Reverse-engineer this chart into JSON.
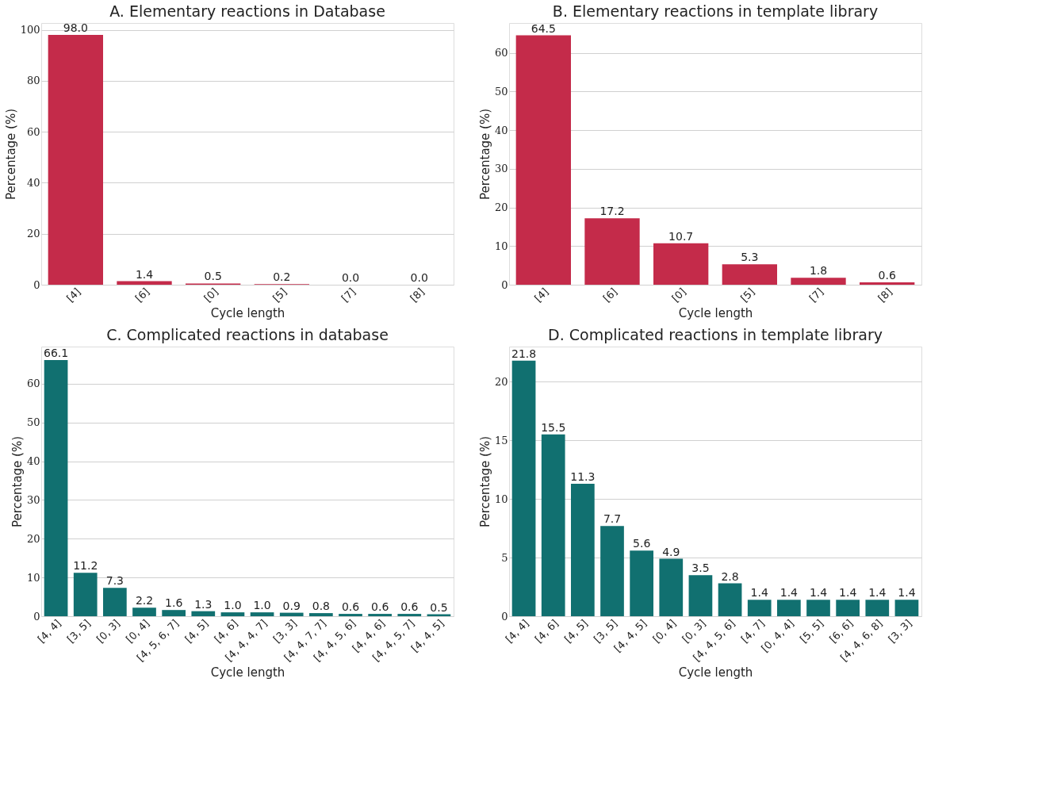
{
  "chart_data": [
    {
      "type": "bar",
      "title": "A. Elementary reactions in Database",
      "xlabel": "Cycle length",
      "ylabel": "Percentage (%)",
      "categories": [
        "[4]",
        "[6]",
        "[0]",
        "[5]",
        "[7]",
        "[8]"
      ],
      "values": [
        98.0,
        1.4,
        0.5,
        0.2,
        0.0,
        0.0
      ],
      "value_labels": [
        "98.0",
        "1.4",
        "0.5",
        "0.2",
        "0.0",
        "0.0"
      ],
      "color": "#c42b4a",
      "ylim": [
        0,
        102.7
      ],
      "yticks": [
        0,
        20,
        40,
        60,
        80,
        100
      ],
      "grid": "y"
    },
    {
      "type": "bar",
      "title": "B. Elementary reactions in template library",
      "xlabel": "Cycle length",
      "ylabel": "Percentage (%)",
      "categories": [
        "[4]",
        "[6]",
        "[0]",
        "[5]",
        "[7]",
        "[8]"
      ],
      "values": [
        64.5,
        17.2,
        10.7,
        5.3,
        1.8,
        0.6
      ],
      "value_labels": [
        "64.5",
        "17.2",
        "10.7",
        "5.3",
        "1.8",
        "0.6"
      ],
      "color": "#c42b4a",
      "ylim": [
        0,
        67.7
      ],
      "yticks": [
        0,
        10,
        20,
        30,
        40,
        50,
        60
      ],
      "grid": "y"
    },
    {
      "type": "bar",
      "title": "C. Complicated reactions in database",
      "xlabel": "Cycle length",
      "ylabel": "Percentage (%)",
      "categories": [
        "[4, 4]",
        "[3, 5]",
        "[0, 3]",
        "[0, 4]",
        "[4, 5, 6, 7]",
        "[4, 5]",
        "[4, 6]",
        "[4, 4, 4, 7]",
        "[3, 3]",
        "[4, 4, 7, 7]",
        "[4, 4, 5, 6]",
        "[4, 4, 6]",
        "[4, 4, 5, 7]",
        "[4, 4, 5]"
      ],
      "values": [
        66.1,
        11.2,
        7.3,
        2.2,
        1.6,
        1.3,
        1.0,
        1.0,
        0.9,
        0.8,
        0.6,
        0.6,
        0.6,
        0.5
      ],
      "value_labels": [
        "66.1",
        "11.2",
        "7.3",
        "2.2",
        "1.6",
        "1.3",
        "1.0",
        "1.0",
        "0.9",
        "0.8",
        "0.6",
        "0.6",
        "0.6",
        "0.5"
      ],
      "color": "#117070",
      "ylim": [
        0,
        69.6
      ],
      "yticks": [
        0,
        10,
        20,
        30,
        40,
        50,
        60
      ],
      "grid": "y"
    },
    {
      "type": "bar",
      "title": "D. Complicated reactions in template library",
      "xlabel": "Cycle length",
      "ylabel": "Percentage (%)",
      "categories": [
        "[4, 4]",
        "[4, 6]",
        "[4, 5]",
        "[3, 5]",
        "[4, 4, 5]",
        "[0, 4]",
        "[0, 3]",
        "[4, 4, 5, 6]",
        "[4, 7]",
        "[0, 4, 4]",
        "[5, 5]",
        "[6, 6]",
        "[4, 4, 6, 8]",
        "[3, 3]"
      ],
      "values": [
        21.8,
        15.5,
        11.3,
        7.7,
        5.6,
        4.9,
        3.5,
        2.8,
        1.4,
        1.4,
        1.4,
        1.4,
        1.4,
        1.4
      ],
      "value_labels": [
        "21.8",
        "15.5",
        "11.3",
        "7.7",
        "5.6",
        "4.9",
        "3.5",
        "2.8",
        "1.4",
        "1.4",
        "1.4",
        "1.4",
        "1.4",
        "1.4"
      ],
      "color": "#117070",
      "ylim": [
        0,
        23.0
      ],
      "yticks": [
        0,
        5,
        10,
        15,
        20
      ],
      "grid": "y"
    }
  ]
}
